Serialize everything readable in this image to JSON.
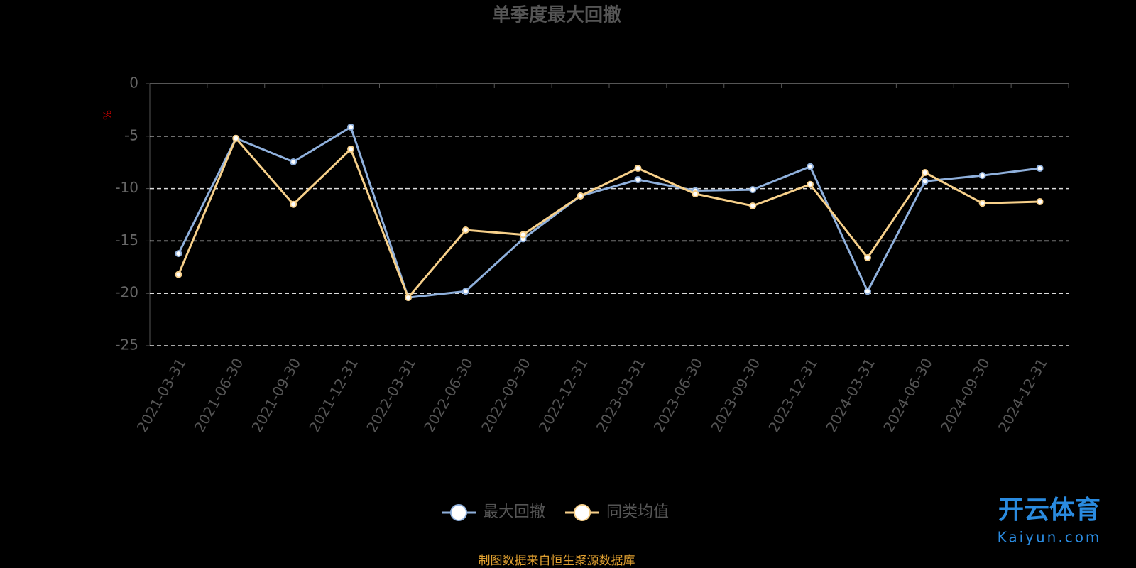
{
  "chart_data": {
    "type": "line",
    "title": "单季度最大回撤",
    "y_label": "%",
    "categories": [
      "2021-03-31",
      "2021-06-30",
      "2021-09-30",
      "2021-12-31",
      "2022-03-31",
      "2022-06-30",
      "2022-09-30",
      "2022-12-31",
      "2023-03-31",
      "2023-06-30",
      "2023-09-30",
      "2023-12-31",
      "2024-03-31",
      "2024-06-30",
      "2024-09-30",
      "2024-12-31"
    ],
    "series": [
      {
        "name": "最大回撤",
        "color": "#8fb0dc",
        "values": [
          -16.2,
          -5.2,
          -7.45,
          -4.13,
          -20.4,
          -19.8,
          -14.8,
          -10.7,
          -9.15,
          -10.2,
          -10.1,
          -7.9,
          -19.8,
          -9.3,
          -8.75,
          -8.06
        ]
      },
      {
        "name": "同类均值",
        "color": "#f7d08a",
        "values": [
          -18.2,
          -5.2,
          -11.5,
          -6.23,
          -20.4,
          -13.96,
          -14.4,
          -10.7,
          -8.06,
          -10.5,
          -11.65,
          -9.6,
          -16.6,
          -8.47,
          -11.4,
          -11.25
        ]
      }
    ],
    "ylim": [
      -25,
      0
    ],
    "yticks": [
      0,
      -5,
      -10,
      -15,
      -20,
      -25
    ],
    "grid": true,
    "source": "制图数据来自恒生聚源数据库",
    "watermark": {
      "title": "开云体育",
      "subtitle": "Kaiyun.com"
    }
  }
}
